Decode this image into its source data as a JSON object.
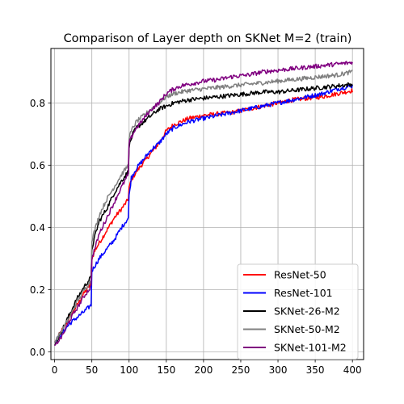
{
  "chart_data": {
    "type": "line",
    "title": "Comparison of Layer depth on SKNet M=2 (train)",
    "xlabel": "",
    "ylabel": "",
    "xlim": [
      -5,
      415
    ],
    "ylim": [
      -0.025,
      0.975
    ],
    "xticks": [
      0,
      50,
      100,
      150,
      200,
      250,
      300,
      350,
      400
    ],
    "yticks": [
      0.0,
      0.2,
      0.4,
      0.6,
      0.8
    ],
    "grid": true,
    "legend_position": "bottom-right",
    "series": [
      {
        "name": "ResNet-50",
        "color": "#ff0000",
        "x": [
          0,
          10,
          20,
          30,
          40,
          49,
          50,
          55,
          60,
          70,
          80,
          90,
          99,
          100,
          105,
          110,
          120,
          130,
          140,
          150,
          160,
          170,
          180,
          200,
          220,
          240,
          260,
          280,
          300,
          320,
          340,
          360,
          380,
          400
        ],
        "y": [
          0.03,
          0.07,
          0.11,
          0.15,
          0.19,
          0.22,
          0.3,
          0.33,
          0.35,
          0.39,
          0.43,
          0.46,
          0.49,
          0.53,
          0.56,
          0.58,
          0.61,
          0.64,
          0.67,
          0.71,
          0.73,
          0.74,
          0.75,
          0.76,
          0.765,
          0.77,
          0.78,
          0.79,
          0.8,
          0.81,
          0.815,
          0.82,
          0.83,
          0.84
        ]
      },
      {
        "name": "ResNet-101",
        "color": "#0000ff",
        "x": [
          0,
          10,
          20,
          30,
          40,
          49,
          50,
          55,
          60,
          70,
          80,
          90,
          99,
          100,
          103,
          110,
          120,
          130,
          140,
          150,
          160,
          170,
          180,
          200,
          220,
          240,
          260,
          280,
          300,
          320,
          340,
          360,
          380,
          400
        ],
        "y": [
          0.03,
          0.06,
          0.09,
          0.11,
          0.13,
          0.15,
          0.26,
          0.28,
          0.3,
          0.33,
          0.36,
          0.4,
          0.43,
          0.5,
          0.56,
          0.59,
          0.62,
          0.65,
          0.67,
          0.7,
          0.72,
          0.73,
          0.74,
          0.75,
          0.76,
          0.77,
          0.78,
          0.79,
          0.8,
          0.81,
          0.82,
          0.83,
          0.845,
          0.855
        ]
      },
      {
        "name": "SKNet-26-M2",
        "color": "#000000",
        "x": [
          0,
          10,
          20,
          30,
          40,
          49,
          50,
          55,
          60,
          70,
          80,
          90,
          99,
          100,
          105,
          110,
          120,
          130,
          140,
          150,
          160,
          170,
          180,
          200,
          220,
          240,
          260,
          280,
          300,
          320,
          340,
          360,
          380,
          400
        ],
        "y": [
          0.02,
          0.07,
          0.12,
          0.17,
          0.21,
          0.24,
          0.33,
          0.38,
          0.42,
          0.46,
          0.51,
          0.55,
          0.58,
          0.66,
          0.7,
          0.72,
          0.74,
          0.76,
          0.78,
          0.79,
          0.8,
          0.805,
          0.81,
          0.815,
          0.82,
          0.825,
          0.83,
          0.835,
          0.835,
          0.84,
          0.845,
          0.85,
          0.855,
          0.86
        ]
      },
      {
        "name": "SKNet-50-M2",
        "color": "#808080",
        "x": [
          0,
          10,
          20,
          30,
          40,
          49,
          50,
          55,
          60,
          70,
          80,
          90,
          99,
          100,
          105,
          110,
          120,
          130,
          140,
          150,
          160,
          170,
          180,
          200,
          220,
          240,
          260,
          280,
          300,
          320,
          340,
          360,
          380,
          400
        ],
        "y": [
          0.03,
          0.07,
          0.11,
          0.16,
          0.2,
          0.23,
          0.36,
          0.4,
          0.44,
          0.49,
          0.53,
          0.57,
          0.6,
          0.69,
          0.72,
          0.74,
          0.76,
          0.78,
          0.8,
          0.82,
          0.83,
          0.835,
          0.84,
          0.845,
          0.85,
          0.855,
          0.86,
          0.865,
          0.87,
          0.875,
          0.88,
          0.885,
          0.89,
          0.9
        ]
      },
      {
        "name": "SKNet-101-M2",
        "color": "#800080",
        "x": [
          0,
          10,
          20,
          30,
          40,
          49,
          50,
          55,
          60,
          70,
          80,
          90,
          99,
          100,
          105,
          110,
          120,
          130,
          140,
          150,
          160,
          170,
          180,
          200,
          220,
          240,
          260,
          280,
          300,
          320,
          340,
          360,
          380,
          400
        ],
        "y": [
          0.02,
          0.05,
          0.1,
          0.14,
          0.18,
          0.21,
          0.3,
          0.34,
          0.38,
          0.43,
          0.48,
          0.53,
          0.57,
          0.67,
          0.7,
          0.72,
          0.75,
          0.78,
          0.8,
          0.83,
          0.845,
          0.855,
          0.86,
          0.87,
          0.875,
          0.885,
          0.89,
          0.9,
          0.905,
          0.91,
          0.915,
          0.92,
          0.925,
          0.93
        ]
      }
    ]
  }
}
